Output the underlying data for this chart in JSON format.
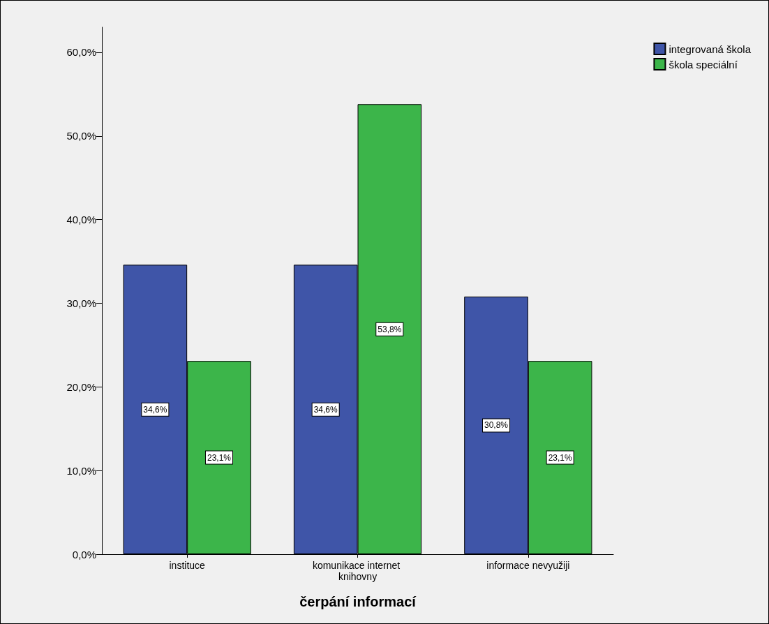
{
  "chart_data": {
    "type": "bar",
    "xlabel": "čerpání informací",
    "categories": [
      "instituce",
      "komunikace internet knihovny",
      "informace nevyužiji"
    ],
    "series": [
      {
        "name": "integrovaná škola",
        "color": "#3f55a8",
        "values": [
          34.6,
          34.6,
          30.8
        ],
        "value_labels": [
          "34,6%",
          "34,6%",
          "30,8%"
        ]
      },
      {
        "name": "škola speciální",
        "color": "#3cb54a",
        "values": [
          23.1,
          53.8,
          23.1
        ],
        "value_labels": [
          "23,1%",
          "53,8%",
          "23,1%"
        ]
      }
    ],
    "ylim": [
      0,
      63
    ],
    "yticks": [
      {
        "value": 0,
        "label": "0,0%"
      },
      {
        "value": 10,
        "label": "10,0%"
      },
      {
        "value": 20,
        "label": "20,0%"
      },
      {
        "value": 30,
        "label": "30,0%"
      },
      {
        "value": 40,
        "label": "40,0%"
      },
      {
        "value": 50,
        "label": "50,0%"
      },
      {
        "value": 60,
        "label": "60,0%"
      }
    ],
    "grid": false,
    "legend": "top right"
  }
}
